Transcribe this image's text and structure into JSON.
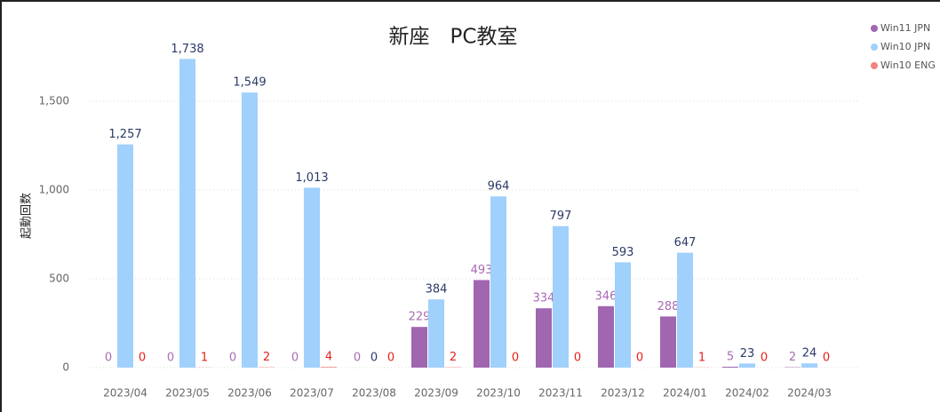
{
  "chart_data": {
    "type": "bar",
    "title": "新座　PC教室",
    "ylabel": "起動回数",
    "categories": [
      "2023/04",
      "2023/05",
      "2023/06",
      "2023/07",
      "2023/08",
      "2023/09",
      "2023/10",
      "2023/11",
      "2023/12",
      "2024/01",
      "2024/02",
      "2024/03"
    ],
    "series": [
      {
        "name": "Win11 JPN",
        "color": "#a066b0",
        "label_color": "#a86cb3",
        "values": [
          0,
          0,
          0,
          0,
          0,
          229,
          493,
          334,
          346,
          288,
          5,
          2
        ]
      },
      {
        "name": "Win10 JPN",
        "color": "#a0d0fc",
        "label_color": "#2b3a67",
        "values": [
          1257,
          1738,
          1549,
          1013,
          0,
          384,
          964,
          797,
          593,
          647,
          23,
          24
        ],
        "value_labels": [
          "1,257",
          "1,738",
          "1,549",
          "1,013",
          "0",
          "384",
          "964",
          "797",
          "593",
          "647",
          "23",
          "24"
        ]
      },
      {
        "name": "Win10 ENG",
        "color": "#f4837d",
        "label_color": "#e8201a",
        "values": [
          0,
          1,
          2,
          4,
          0,
          2,
          0,
          0,
          0,
          1,
          0,
          0
        ]
      }
    ],
    "ylim": [
      0,
      1800
    ],
    "yticks": [
      0,
      500,
      {
        "value": 1000,
        "label": "1,000"
      },
      {
        "value": 1500,
        "label": "1,500"
      }
    ],
    "grid": true,
    "legend": "top-right"
  }
}
